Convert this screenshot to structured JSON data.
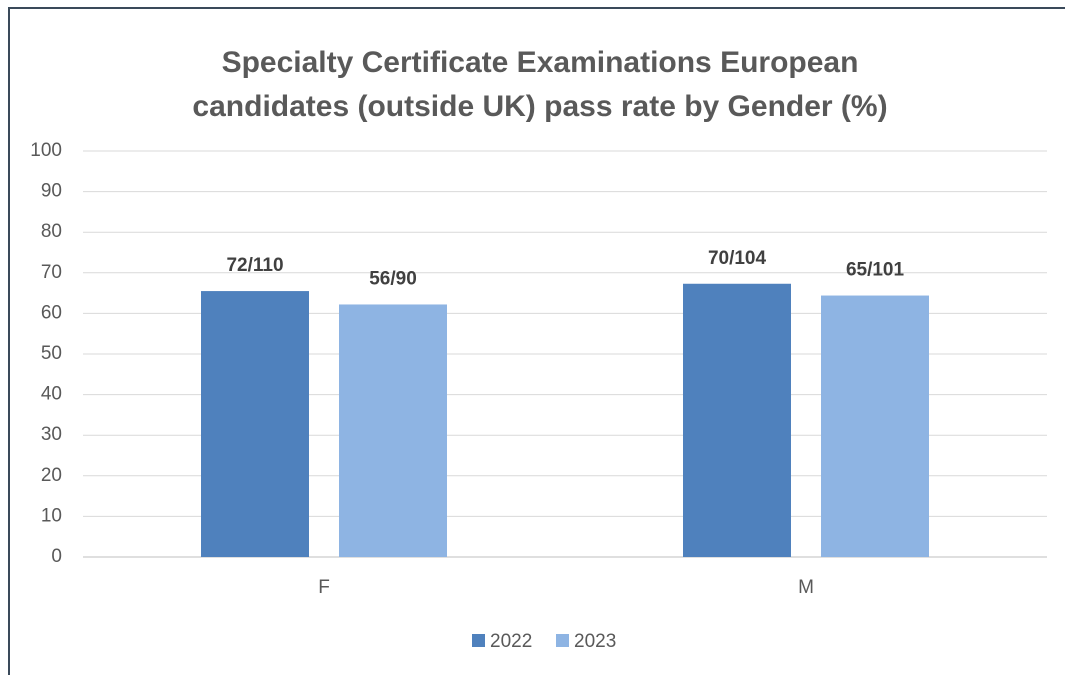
{
  "chart_data": {
    "type": "bar",
    "title": [
      "Specialty Certificate Examinations European",
      "candidates (outside UK) pass rate by Gender (%)"
    ],
    "categories": [
      "F",
      "M"
    ],
    "series": [
      {
        "name": "2022",
        "color": "#4f81bd",
        "values": [
          65.5,
          67.3
        ],
        "value_labels": [
          "72/110",
          "70/104"
        ]
      },
      {
        "name": "2023",
        "color": "#8eb4e3",
        "values": [
          62.2,
          64.4
        ],
        "value_labels": [
          "56/90",
          "65/101"
        ]
      }
    ],
    "ylim": [
      0,
      100
    ],
    "yticks": [
      0,
      10,
      20,
      30,
      40,
      50,
      60,
      70,
      80,
      90,
      100
    ],
    "grid": true,
    "legend": "bottom"
  }
}
